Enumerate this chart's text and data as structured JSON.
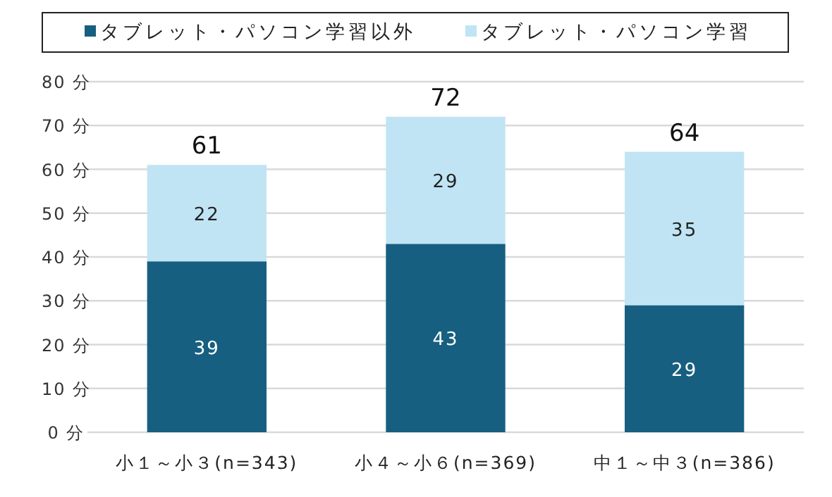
{
  "chart_data": {
    "type": "bar",
    "stacked": true,
    "categories": [
      "小１～小３(n=343)",
      "小４～小６(n=369)",
      "中１～中３(n=386)"
    ],
    "series": [
      {
        "name": "タブレット・パソコン学習以外",
        "color": "#175f80",
        "values": [
          39,
          43,
          29
        ]
      },
      {
        "name": "タブレット・パソコン学習",
        "color": "#c0e4f4",
        "values": [
          22,
          29,
          35
        ]
      }
    ],
    "ylim": [
      0,
      80
    ],
    "yticks": [
      {
        "value": 0,
        "label": "0 分"
      },
      {
        "value": 10,
        "label": "10 分"
      },
      {
        "value": 20,
        "label": "20 分"
      },
      {
        "value": 30,
        "label": "30 分"
      },
      {
        "value": 40,
        "label": "40 分"
      },
      {
        "value": 50,
        "label": "50 分"
      },
      {
        "value": 60,
        "label": "60 分"
      },
      {
        "value": 70,
        "label": "70 分"
      },
      {
        "value": 80,
        "label": "80 分"
      }
    ],
    "grid": "y",
    "legend": "top",
    "data_labels": true,
    "totals": [
      "61",
      "72",
      "64"
    ]
  }
}
